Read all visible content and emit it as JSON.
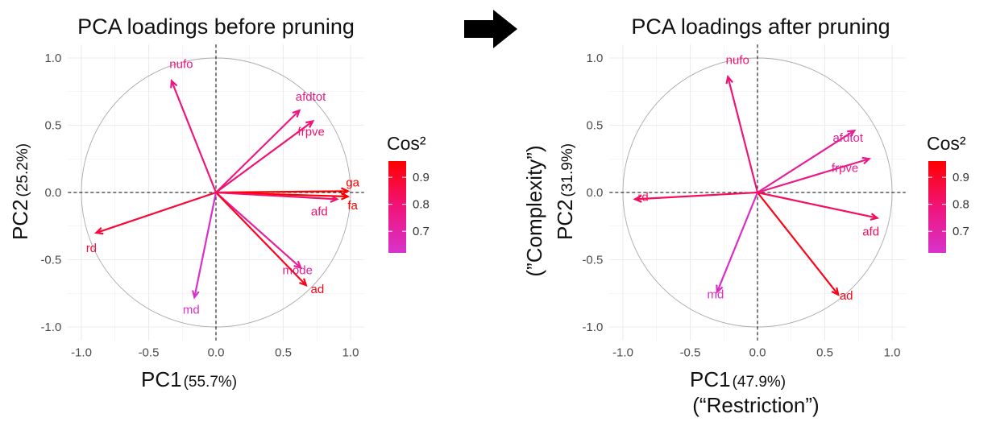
{
  "chart_data": [
    {
      "type": "scatter",
      "subtype": "pca-variable-loadings",
      "title": "PCA loadings before pruning",
      "xlabel": "PC1",
      "xlabel_pct": "(55.7%)",
      "xlabel_extra": "",
      "ylabel": "PC2",
      "ylabel_pct": "(25.2%)",
      "ylabel_extra": "",
      "xlim": [
        -1.1,
        1.1
      ],
      "ylim": [
        -1.1,
        1.1
      ],
      "xticks": [
        "-1.0",
        "-0.5",
        "0.0",
        "0.5",
        "1.0"
      ],
      "yticks": [
        "-1.0",
        "-0.5",
        "0.0",
        "0.5",
        "1.0"
      ],
      "unit_circle": true,
      "grid": true,
      "loadings": [
        {
          "name": "nufo",
          "x": -0.33,
          "y": 0.83,
          "cos2": 0.78
        },
        {
          "name": "afdtot",
          "x": 0.62,
          "y": 0.61,
          "cos2": 0.77
        },
        {
          "name": "frpve",
          "x": 0.72,
          "y": 0.53,
          "cos2": 0.8
        },
        {
          "name": "ga",
          "x": 0.98,
          "y": 0.01,
          "cos2": 0.96
        },
        {
          "name": "fa",
          "x": 0.98,
          "y": -0.03,
          "cos2": 0.96
        },
        {
          "name": "afd",
          "x": 0.9,
          "y": -0.05,
          "cos2": 0.81
        },
        {
          "name": "mode",
          "x": 0.63,
          "y": -0.56,
          "cos2": 0.72
        },
        {
          "name": "ad",
          "x": 0.67,
          "y": -0.69,
          "cos2": 0.92
        },
        {
          "name": "md",
          "x": -0.16,
          "y": -0.78,
          "cos2": 0.63
        },
        {
          "name": "rd",
          "x": -0.89,
          "y": -0.3,
          "cos2": 0.88
        }
      ]
    },
    {
      "type": "scatter",
      "subtype": "pca-variable-loadings",
      "title": "PCA loadings after pruning",
      "xlabel": "PC1",
      "xlabel_pct": "(47.9%)",
      "xlabel_extra": "(“Restriction”)",
      "ylabel": "PC2",
      "ylabel_pct": "(31.9%)",
      "ylabel_extra": "(”Complexity”)",
      "xlim": [
        -1.1,
        1.1
      ],
      "ylim": [
        -1.1,
        1.1
      ],
      "xticks": [
        "-1.0",
        "-0.5",
        "0.0",
        "0.5",
        "1.0"
      ],
      "yticks": [
        "-1.0",
        "-0.5",
        "0.0",
        "0.5",
        "1.0"
      ],
      "unit_circle": true,
      "grid": true,
      "loadings": [
        {
          "name": "nufo",
          "x": -0.22,
          "y": 0.86,
          "cos2": 0.79
        },
        {
          "name": "afdtot",
          "x": 0.72,
          "y": 0.46,
          "cos2": 0.73
        },
        {
          "name": "frpve",
          "x": 0.83,
          "y": 0.25,
          "cos2": 0.76
        },
        {
          "name": "afd",
          "x": 0.89,
          "y": -0.19,
          "cos2": 0.83
        },
        {
          "name": "ad",
          "x": 0.6,
          "y": -0.76,
          "cos2": 0.93
        },
        {
          "name": "md",
          "x": -0.3,
          "y": -0.74,
          "cos2": 0.64
        },
        {
          "name": "rd",
          "x": -0.91,
          "y": -0.05,
          "cos2": 0.83
        }
      ]
    }
  ],
  "legend": [
    {
      "title": "Cos²",
      "ticks": [
        "0.9",
        "0.8",
        "0.7"
      ],
      "tick_values": [
        0.9,
        0.8,
        0.7
      ],
      "range": [
        0.62,
        0.96
      ],
      "colors": {
        "low": "#d733cc",
        "mid": "#f0147a",
        "high": "#ff0000"
      }
    },
    {
      "title": "Cos²",
      "ticks": [
        "0.9",
        "0.8",
        "0.7"
      ],
      "tick_values": [
        0.9,
        0.8,
        0.7
      ],
      "range": [
        0.62,
        0.96
      ],
      "colors": {
        "low": "#d733cc",
        "mid": "#f0147a",
        "high": "#ff0000"
      }
    }
  ]
}
